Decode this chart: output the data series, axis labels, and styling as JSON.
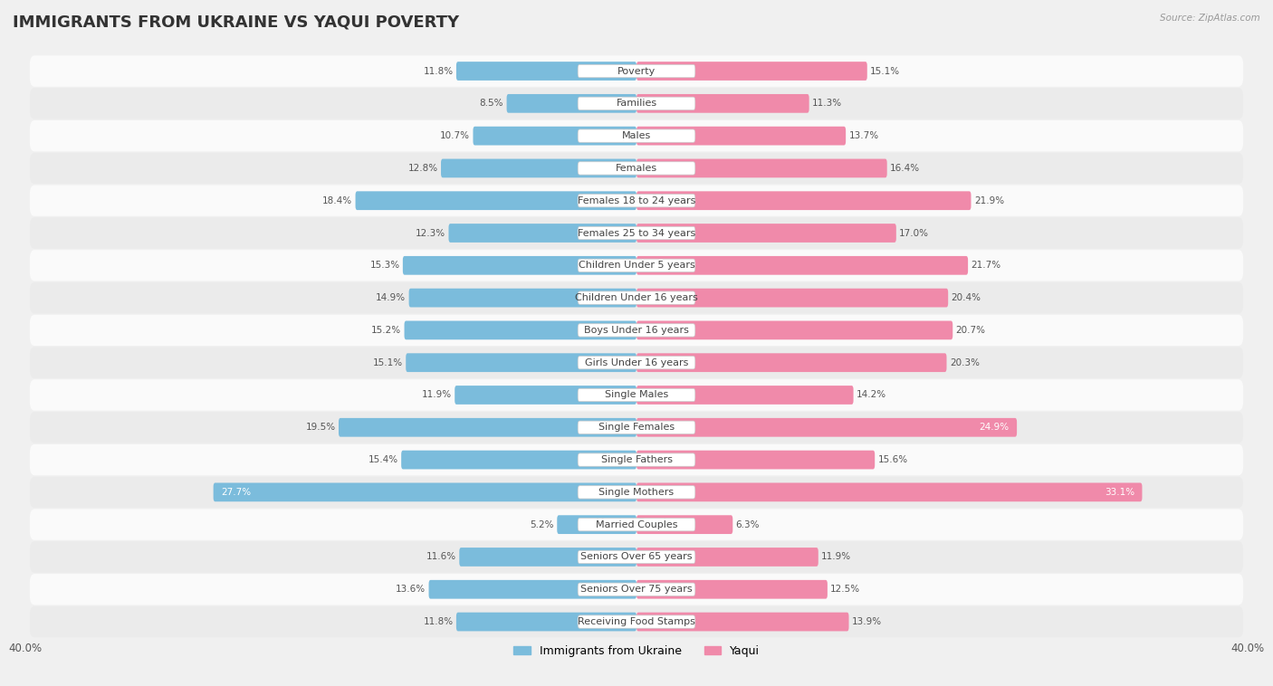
{
  "title": "IMMIGRANTS FROM UKRAINE VS YAQUI POVERTY",
  "source": "Source: ZipAtlas.com",
  "categories": [
    "Poverty",
    "Families",
    "Males",
    "Females",
    "Females 18 to 24 years",
    "Females 25 to 34 years",
    "Children Under 5 years",
    "Children Under 16 years",
    "Boys Under 16 years",
    "Girls Under 16 years",
    "Single Males",
    "Single Females",
    "Single Fathers",
    "Single Mothers",
    "Married Couples",
    "Seniors Over 65 years",
    "Seniors Over 75 years",
    "Receiving Food Stamps"
  ],
  "ukraine_values": [
    11.8,
    8.5,
    10.7,
    12.8,
    18.4,
    12.3,
    15.3,
    14.9,
    15.2,
    15.1,
    11.9,
    19.5,
    15.4,
    27.7,
    5.2,
    11.6,
    13.6,
    11.8
  ],
  "yaqui_values": [
    15.1,
    11.3,
    13.7,
    16.4,
    21.9,
    17.0,
    21.7,
    20.4,
    20.7,
    20.3,
    14.2,
    24.9,
    15.6,
    33.1,
    6.3,
    11.9,
    12.5,
    13.9
  ],
  "ukraine_color": "#7bbcdc",
  "yaqui_color": "#f08aaa",
  "ukraine_label": "Immigrants from Ukraine",
  "yaqui_label": "Yaqui",
  "xlim": 40.0,
  "bar_height": 0.58,
  "bg_color": "#f0f0f0",
  "row_color_light": "#fafafa",
  "row_color_dark": "#ebebeb",
  "title_fontsize": 13,
  "label_fontsize": 8.0,
  "value_fontsize": 7.5,
  "axis_label_fontsize": 8.5,
  "ukraine_white_inside": [
    27.7
  ],
  "yaqui_white_inside": [
    24.9,
    33.1
  ]
}
